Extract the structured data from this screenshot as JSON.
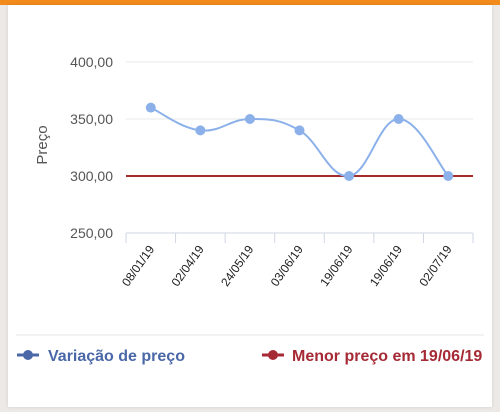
{
  "colors": {
    "accent_bar": "#f28a1c",
    "series_line": "#8cb1ea",
    "series_point": "#8cb1ea",
    "min_line": "#a52a2a",
    "legend_series": "#4a68a8",
    "legend_min": "#a52a35"
  },
  "chart_data": {
    "type": "line",
    "title": "",
    "xlabel": "",
    "ylabel": "Preço",
    "ylim": [
      250,
      400
    ],
    "yticks": [
      "400,00",
      "350,00",
      "300,00",
      "250,00"
    ],
    "ytick_values": [
      400,
      350,
      300,
      250
    ],
    "categories": [
      "08/01/19",
      "02/04/19",
      "24/05/19",
      "03/06/19",
      "19/06/19",
      "19/06/19",
      "02/07/19"
    ],
    "series": [
      {
        "name": "Variação de preço",
        "values": [
          360,
          340,
          350,
          340,
          300,
          350,
          300
        ]
      },
      {
        "name": "Menor preço em 19/06/19",
        "values": [
          300,
          300,
          300,
          300,
          300,
          300,
          300
        ]
      }
    ],
    "grid": true,
    "legend_position": "bottom"
  }
}
